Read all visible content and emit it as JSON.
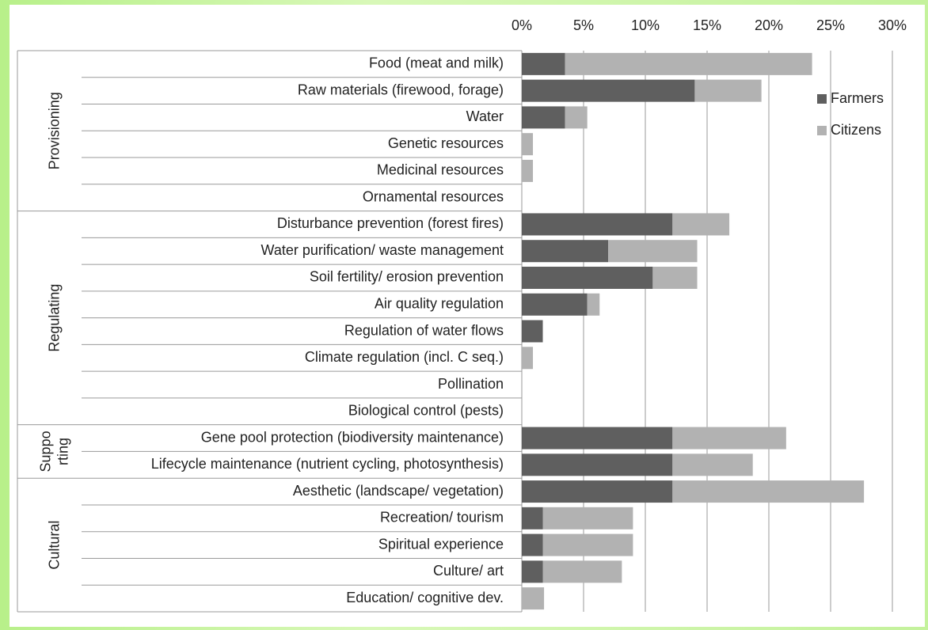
{
  "chart_data": {
    "type": "stacked-bar-horizontal",
    "groups": [
      {
        "lines": [
          "Provisioning"
        ],
        "categories": [
          "Food (meat and milk)",
          "Raw materials (firewood, forage)",
          "Water",
          "Genetic resources",
          "Medicinal resources",
          "Ornamental resources"
        ]
      },
      {
        "lines": [
          "Regulating"
        ],
        "categories": [
          "Disturbance prevention (forest fires)",
          "Water purification/ waste management",
          "Soil fertility/ erosion prevention",
          "Air quality regulation",
          "Regulation of water flows",
          "Climate regulation (incl. C seq.)",
          "Pollination",
          "Biological control (pests)"
        ]
      },
      {
        "lines": [
          "Suppo",
          "rting"
        ],
        "categories": [
          "Gene pool protection (biodiversity maintenance)",
          "Lifecycle maintenance (nutrient cycling, photosynthesis)"
        ]
      },
      {
        "lines": [
          "Cultural"
        ],
        "categories": [
          "Aesthetic (landscape/ vegetation)",
          "Recreation/ tourism",
          "Spiritual experience",
          "Culture/ art",
          "Education/ cognitive dev."
        ]
      }
    ],
    "series": [
      {
        "name": "Farmers",
        "color": "#5f5f5f",
        "values": [
          3.5,
          14.0,
          3.5,
          0,
          0,
          0,
          12.2,
          7.0,
          10.6,
          5.3,
          1.7,
          0,
          0,
          0,
          12.2,
          12.2,
          12.2,
          1.7,
          1.7,
          1.7,
          0
        ]
      },
      {
        "name": "Citizens",
        "color": "#b2b2b2",
        "values": [
          20.0,
          5.4,
          1.8,
          0.9,
          0.9,
          0,
          4.6,
          7.2,
          3.6,
          1.0,
          0,
          0.9,
          0,
          0,
          9.2,
          6.5,
          15.5,
          7.3,
          7.3,
          6.4,
          1.8
        ]
      }
    ],
    "xlim": [
      0,
      30
    ],
    "xticks": [
      {
        "value": 0,
        "label": "0%"
      },
      {
        "value": 5,
        "label": "5%"
      },
      {
        "value": 10,
        "label": "10%"
      },
      {
        "value": 15,
        "label": "15%"
      },
      {
        "value": 20,
        "label": "20%"
      },
      {
        "value": 25,
        "label": "25%"
      },
      {
        "value": 30,
        "label": "30%"
      }
    ],
    "grid": true,
    "legend": "right"
  }
}
